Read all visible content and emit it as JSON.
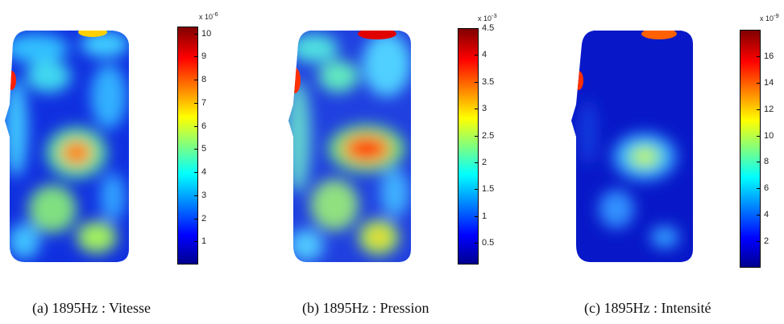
{
  "chart_data": [
    {
      "type": "heatmap",
      "caption": "(a)  1895Hz : Vitesse",
      "colormap": "jet",
      "colorbar": {
        "exponent": "x 10",
        "exponent_power": "-6",
        "ticks": [
          "1",
          "2",
          "3",
          "4",
          "5",
          "6",
          "7",
          "8",
          "9",
          "10"
        ],
        "range": [
          0,
          10.3
        ]
      }
    },
    {
      "type": "heatmap",
      "caption": "(b)  1895Hz : Pression",
      "colormap": "jet",
      "colorbar": {
        "exponent": "x 10",
        "exponent_power": "-3",
        "ticks": [
          "0.5",
          "1",
          "1.5",
          "2",
          "2.5",
          "3",
          "3.5",
          "4",
          "4.5"
        ],
        "range": [
          0.1,
          4.5
        ]
      }
    },
    {
      "type": "heatmap",
      "caption": "(c)  1895Hz : Intensité",
      "colormap": "jet",
      "colorbar": {
        "exponent": "x 10",
        "exponent_power": "-9",
        "ticks": [
          "2",
          "4",
          "6",
          "8",
          "10",
          "12",
          "14",
          "16"
        ],
        "range": [
          0,
          18
        ]
      }
    }
  ]
}
